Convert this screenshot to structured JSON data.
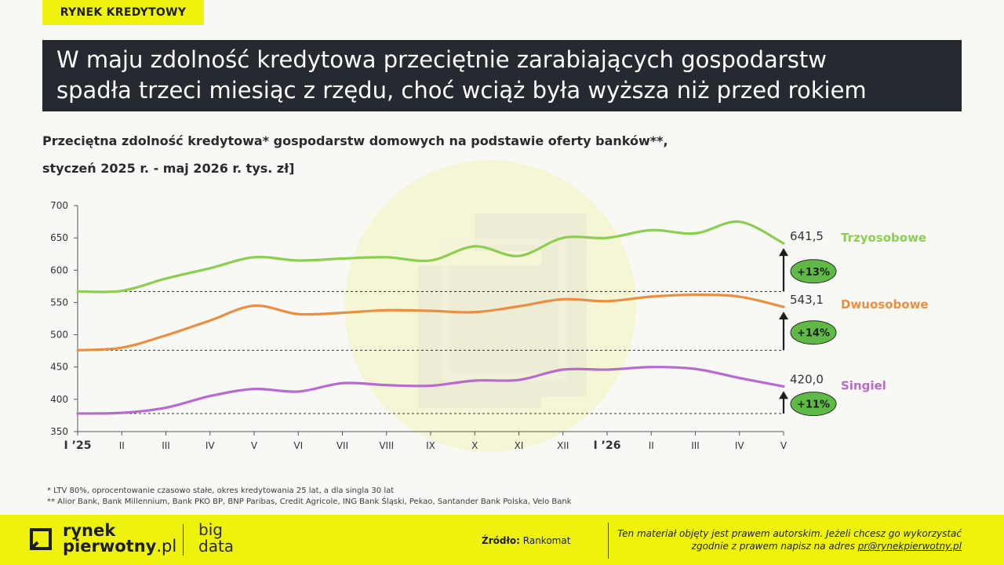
{
  "header": {
    "tag": "RYNEK KREDYTOWY",
    "headline_line1": "W maju zdolność kredytowa przeciętnie zarabiających gospodarstw",
    "headline_line2": "spadła trzeci miesiąc z rzędu, choć wciąż była wyższa niż przed rokiem"
  },
  "chart_title_line1": "Przeciętna zdolność kredytowa* gospodarstw domowych na podstawie oferty banków**,",
  "chart_title_line2": "styczeń 2025 r. - maj 2026 r. tys. zł]",
  "chart_data": {
    "type": "line",
    "ylim": [
      350,
      700
    ],
    "yticks": [
      350,
      400,
      450,
      500,
      550,
      600,
      650,
      700
    ],
    "categories": [
      "I ’25",
      "II",
      "III",
      "IV",
      "V",
      "VI",
      "VII",
      "VIII",
      "IX",
      "X",
      "XI",
      "XII",
      "I ’26",
      "II",
      "III",
      "IV",
      "V"
    ],
    "bold_categories": [
      0,
      12
    ],
    "series": [
      {
        "name": "Trzyosobowe",
        "color": "#8ccf50",
        "values": [
          567,
          568,
          587,
          603,
          620,
          615,
          618,
          620,
          615,
          637,
          622,
          650,
          650,
          662,
          657,
          675,
          641.5
        ],
        "end_label": "641,5",
        "change": "+13%"
      },
      {
        "name": "Dwuosobowe",
        "color": "#ec8e3f",
        "values": [
          476,
          480,
          499,
          522,
          545,
          532,
          534,
          538,
          537,
          535,
          544,
          555,
          552,
          559,
          562,
          559,
          543.1
        ],
        "end_label": "543,1",
        "change": "+14%"
      },
      {
        "name": "Singiel",
        "color": "#b86ad0",
        "values": [
          378,
          379,
          387,
          405,
          416,
          412,
          425,
          422,
          421,
          429,
          430,
          446,
          446,
          450,
          447,
          433,
          420
        ],
        "end_label": "420,0",
        "change": "+11%"
      }
    ],
    "reference_lines": [
      567,
      476,
      378
    ],
    "badge_color": "#5fba45"
  },
  "notes": {
    "line1": "* LTV 80%, oprocentowanie czasowo stałe, okres kredytowania 25 lat, a dla singla 30 lat",
    "line2": "** Alior Bank, Bank Millennium, Bank PKO BP, BNP Paribas, Credit Agricole, ING Bank Śląski, Pekao, Santander Bank Polska, Velo Bank"
  },
  "footer": {
    "logo_line1": "rynek",
    "logo_line2": "pierwotny",
    "logo_suffix": ".pl",
    "bigdata_line1": "big",
    "bigdata_line2": "data",
    "source_label": "Źródło:",
    "source_value": " Rankomat",
    "copyright_line1": "Ten materiał objęty jest prawem autorskim. Jeżeli chcesz go wykorzystać",
    "copyright_line2": "zgodnie z prawem napisz na adres ",
    "copyright_email": "pr@rynekpierwotny.pl"
  }
}
